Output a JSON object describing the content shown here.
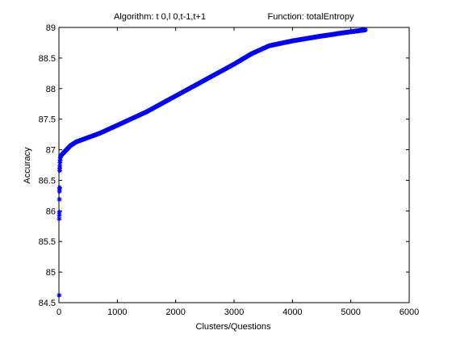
{
  "chart_data": {
    "type": "scatter",
    "title_left": "Algorithm: t 0,l 0,t-1,t+1",
    "title_right": "Function: totalEntropy",
    "xlabel": "Clusters/Questions",
    "ylabel": "Accuracy",
    "xlim": [
      0,
      6000
    ],
    "ylim": [
      84.5,
      89
    ],
    "x_ticks": [
      0,
      1000,
      2000,
      3000,
      4000,
      5000,
      6000
    ],
    "y_ticks": [
      84.5,
      85,
      85.5,
      86,
      86.5,
      87,
      87.5,
      88,
      88.5,
      89
    ],
    "marker": "asterisk",
    "marker_color": "#0000ff",
    "grid": false,
    "box": true,
    "initial_points": [
      {
        "x": 5,
        "y": 84.62
      },
      {
        "x": 6,
        "y": 85.87
      },
      {
        "x": 7,
        "y": 85.93
      },
      {
        "x": 8,
        "y": 85.98
      },
      {
        "x": 9,
        "y": 86.19
      },
      {
        "x": 10,
        "y": 86.32
      },
      {
        "x": 11,
        "y": 86.36
      },
      {
        "x": 12,
        "y": 86.38
      },
      {
        "x": 13,
        "y": 86.66
      },
      {
        "x": 14,
        "y": 86.7
      },
      {
        "x": 16,
        "y": 86.74
      },
      {
        "x": 18,
        "y": 86.79
      },
      {
        "x": 20,
        "y": 86.83
      },
      {
        "x": 25,
        "y": 86.87
      },
      {
        "x": 30,
        "y": 86.9
      }
    ],
    "curve_anchors": [
      {
        "x": 30,
        "y": 86.9
      },
      {
        "x": 60,
        "y": 86.93
      },
      {
        "x": 100,
        "y": 86.97
      },
      {
        "x": 150,
        "y": 87.02
      },
      {
        "x": 200,
        "y": 87.07
      },
      {
        "x": 300,
        "y": 87.13
      },
      {
        "x": 500,
        "y": 87.2
      },
      {
        "x": 700,
        "y": 87.27
      },
      {
        "x": 1000,
        "y": 87.4
      },
      {
        "x": 1500,
        "y": 87.62
      },
      {
        "x": 2000,
        "y": 87.88
      },
      {
        "x": 2500,
        "y": 88.14
      },
      {
        "x": 3000,
        "y": 88.4
      },
      {
        "x": 3300,
        "y": 88.57
      },
      {
        "x": 3600,
        "y": 88.7
      },
      {
        "x": 4000,
        "y": 88.78
      },
      {
        "x": 4500,
        "y": 88.86
      },
      {
        "x": 5000,
        "y": 88.93
      },
      {
        "x": 5250,
        "y": 88.96
      }
    ],
    "curve_step": 12
  }
}
